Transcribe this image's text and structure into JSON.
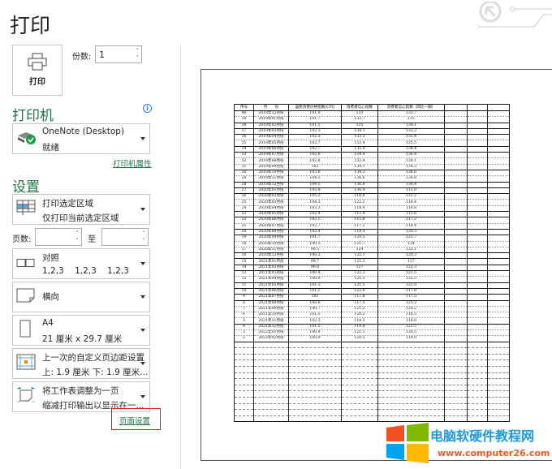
{
  "header": {
    "title": "打印"
  },
  "print": {
    "button_label": "打印",
    "copies_label": "份数:",
    "copies_value": "1"
  },
  "printer": {
    "heading": "打印机",
    "name": "OneNote (Desktop)",
    "status": "就绪",
    "properties_link": "打印机属性"
  },
  "settings": {
    "heading": "设置",
    "print_area": {
      "title": "打印选定区域",
      "subtitle": "仅打印当前选定区域"
    },
    "pages_label": "页数:",
    "pages_to_label": "至",
    "pages_from": "",
    "pages_to": "",
    "collate": {
      "title": "对照",
      "subtitle": "1,2,3    1,2,3    1,2,3"
    },
    "orientation": {
      "title": "横向"
    },
    "paper": {
      "title": "A4",
      "subtitle": "21 厘米 x 29.7 厘米"
    },
    "margins": {
      "title": "上一次的自定义页边距设置",
      "subtitle": "上: 1.9 厘米 下: 1.9 厘米..."
    },
    "scaling": {
      "title": "将工作表调整为一页",
      "subtitle": "缩减打印输出以显示在一..."
    },
    "page_setup_link": "页面设置"
  },
  "preview": {
    "headers": [
      "序号",
      "月　　份",
      "居民消费价格指数(CPI)",
      "消费者信心指数",
      "消费者信心指数（同比一期）"
    ],
    "rows": [
      [
        "40",
        "2018年12月份",
        "101.9",
        "133",
        "133.7"
      ],
      [
        "39",
        "2019年01月份",
        "101.7",
        "133.7",
        "135"
      ],
      [
        "38",
        "2019年02月份",
        "101.5",
        "135",
        "134.1"
      ],
      [
        "37",
        "2019年03月份",
        "102.3",
        "134.1",
        "133.2"
      ],
      [
        "36",
        "2019年04月份",
        "102.5",
        "133.3",
        "133.4"
      ],
      [
        "35",
        "2019年05月份",
        "102.7",
        "133.4",
        "135.5"
      ],
      [
        "34",
        "2019年06月份",
        "102.7",
        "135.9",
        "134.4"
      ],
      [
        "33",
        "2019年07月份",
        "102.8",
        "134.4",
        "136.4"
      ],
      [
        "32",
        "2019年08月份",
        "102.8",
        "132.4",
        "134.1"
      ],
      [
        "31",
        "2019年09月份",
        "103",
        "134.1",
        "134.3"
      ],
      [
        "30",
        "2019年10月份",
        "103.8",
        "134.3",
        "136.6"
      ],
      [
        "29",
        "2019年11月份",
        "104.5",
        "136.6",
        "136.8"
      ],
      [
        "28",
        "2019年12月份",
        "104.5",
        "136.8",
        "136.4"
      ],
      [
        "27",
        "2020年01月份",
        "105.4",
        "136.4",
        "115.9"
      ],
      [
        "26",
        "2020年02月份",
        "105.2",
        "118.9",
        "122.2"
      ],
      [
        "25",
        "2020年03月份",
        "104.3",
        "122.2",
        "118.4"
      ],
      [
        "24",
        "2020年04月份",
        "103.3",
        "118.4",
        "118.8"
      ],
      [
        "23",
        "2020年05月份",
        "102.4",
        "115.8",
        "115.6"
      ],
      [
        "22",
        "2020年06月份",
        "102.5",
        "115.6",
        "117.2"
      ],
      [
        "21",
        "2020年07月份",
        "102.7",
        "117.2",
        "118.4"
      ],
      [
        "20",
        "2020年08月份",
        "102.4",
        "118.4",
        "120.5"
      ],
      [
        "19",
        "2020年09月份",
        "101.7",
        "120.5",
        "121.7"
      ],
      [
        "18",
        "2020年10月份",
        "100.5",
        "121.7",
        "124"
      ],
      [
        "17",
        "2020年11月份",
        "99.5",
        "124",
        "122.1"
      ],
      [
        "16",
        "2020年12月份",
        "100.2",
        "122.1",
        "120.3"
      ],
      [
        "15",
        "2021年01月份",
        "99.7",
        "122.3",
        "127"
      ],
      [
        "14",
        "2021年02月份",
        "99.8",
        "127",
        "122.3"
      ],
      [
        "13",
        "2021年03月份",
        "100.4",
        "122.3",
        "121.5"
      ],
      [
        "12",
        "2021年04月份",
        "100.9",
        "121.5",
        "122.5"
      ],
      [
        "11",
        "2021年05月份",
        "101.3",
        "121.5",
        "122.8"
      ],
      [
        "10",
        "2021年06月份",
        "101.1",
        "122.8",
        "117.8"
      ],
      [
        "9",
        "2021年07月份",
        "101",
        "117.8",
        "117.5"
      ],
      [
        "8",
        "2021年08月份",
        "100.8",
        "117.5",
        "121.2"
      ],
      [
        "7",
        "2021年09月份",
        "100.7",
        "121.2",
        "120.2"
      ],
      [
        "6",
        "2021年10月份",
        "101.5",
        "120.2",
        "118.5"
      ],
      [
        "5",
        "2021年11月份",
        "102.3",
        "118.5",
        "118.8"
      ],
      [
        "4",
        "2021年12月份",
        "101.5",
        "119.8",
        "121.5"
      ],
      [
        "3",
        "2022年01月份",
        "100.9",
        "121.5",
        "120.5"
      ],
      [
        "2",
        "2022年02月份",
        "100.9",
        "120.5",
        "119.9"
      ]
    ]
  },
  "watermark": {
    "name": "电脑软硬件教程网",
    "url": "www.computer26.com"
  },
  "colors": {
    "accent": "#217346",
    "highlight_box": "#e02020"
  }
}
